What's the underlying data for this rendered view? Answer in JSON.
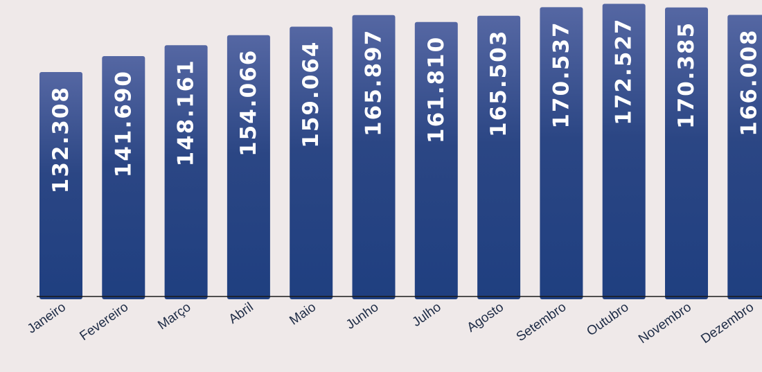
{
  "chart_data": {
    "type": "bar",
    "categories": [
      "Janeiro",
      "Fevereiro",
      "Março",
      "Abril",
      "Maio",
      "Junho",
      "Julho",
      "Agosto",
      "Setembro",
      "Outubro",
      "Novembro",
      "Dezembro"
    ],
    "values": [
      132308,
      141690,
      148161,
      154066,
      159064,
      165897,
      161810,
      165503,
      170537,
      172527,
      170385,
      166008
    ],
    "value_labels": [
      "132.308",
      "141.690",
      "148.161",
      "154.066",
      "159.064",
      "165.897",
      "161.810",
      "165.503",
      "170.537",
      "172.527",
      "170.385",
      "166.008"
    ],
    "title": "",
    "xlabel": "",
    "ylabel": "",
    "grid": false,
    "legend": "none",
    "colors": {
      "bar_top": "#5567a3",
      "bar_mid": "#2b4684",
      "bar_bottom": "#1f3f80",
      "axis": "#1a1a1a",
      "background": "#efe9e9"
    }
  }
}
